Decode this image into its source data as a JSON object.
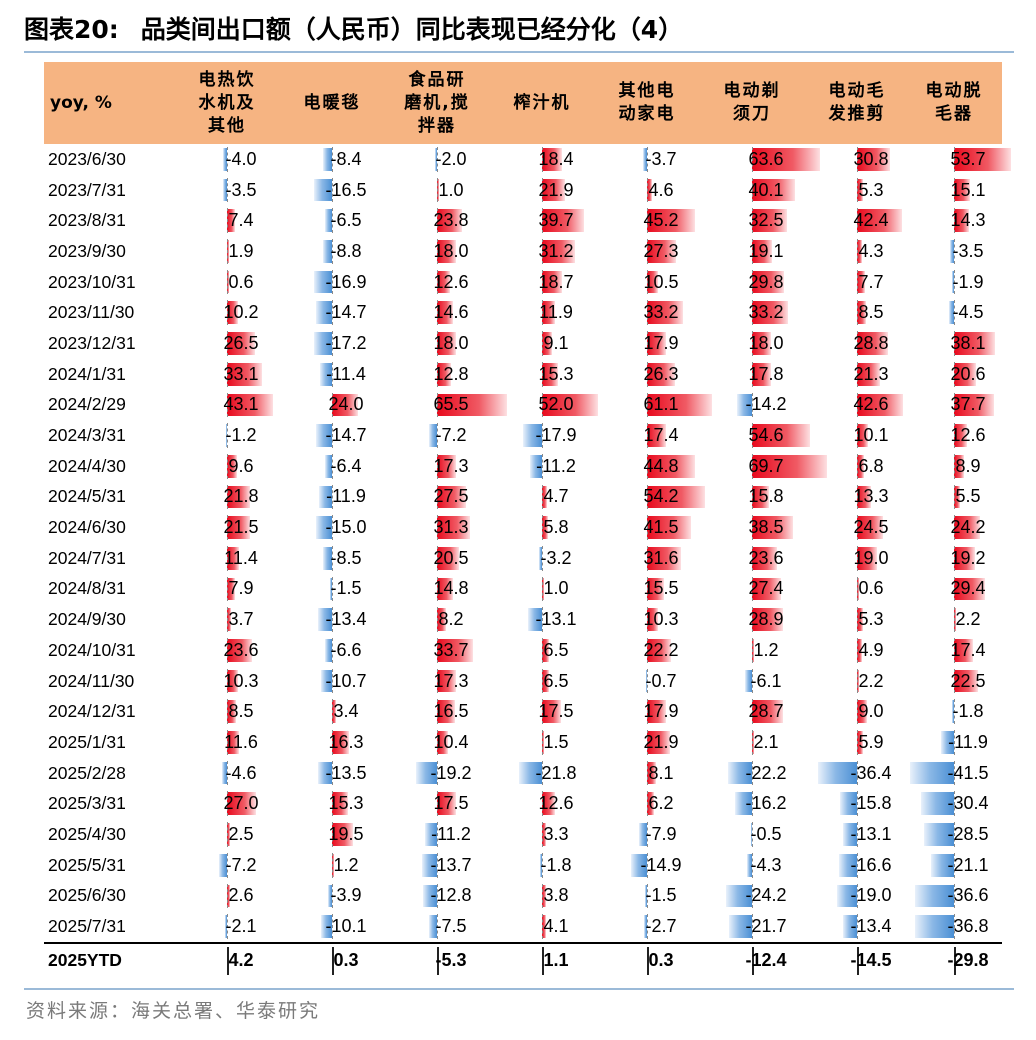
{
  "title": {
    "label": "图表20:",
    "text": "品类间出口额（人民币）同比表现已经分化（4）"
  },
  "table": {
    "header_first": "yoy, %",
    "columns": [
      "电热饮\n水机及\n其他",
      "电暖毯",
      "食品研\n磨机,搅\n拌器",
      "榨汁机",
      "其他电\n动家电",
      "电动剃\n须刀",
      "电动毛\n发推剪",
      "电动脱\n毛器"
    ],
    "colors": {
      "header_bg": "#f6b482",
      "positive": "#e8091d",
      "negative": "#4a8fd4"
    },
    "rows": [
      {
        "date": "2023/6/30",
        "values": [
          "-4.0",
          "-8.4",
          "-2.0",
          "18.4",
          "-3.7",
          "63.6",
          "30.8",
          "53.7"
        ]
      },
      {
        "date": "2023/7/31",
        "values": [
          "-3.5",
          "-16.5",
          "1.0",
          "21.9",
          "4.6",
          "40.1",
          "5.3",
          "15.1"
        ]
      },
      {
        "date": "2023/8/31",
        "values": [
          "7.4",
          "-6.5",
          "23.8",
          "39.7",
          "45.2",
          "32.5",
          "42.4",
          "14.3"
        ]
      },
      {
        "date": "2023/9/30",
        "values": [
          "1.9",
          "-8.8",
          "18.0",
          "31.2",
          "27.3",
          "19.1",
          "4.3",
          "-3.5"
        ]
      },
      {
        "date": "2023/10/31",
        "values": [
          "0.6",
          "-16.9",
          "12.6",
          "18.7",
          "10.5",
          "29.8",
          "7.7",
          "-1.9"
        ]
      },
      {
        "date": "2023/11/30",
        "values": [
          "10.2",
          "-14.7",
          "14.6",
          "11.9",
          "33.2",
          "33.2",
          "8.5",
          "-4.5"
        ]
      },
      {
        "date": "2023/12/31",
        "values": [
          "26.5",
          "-17.2",
          "18.0",
          "9.1",
          "17.9",
          "18.0",
          "28.8",
          "38.1"
        ]
      },
      {
        "date": "2024/1/31",
        "values": [
          "33.1",
          "-11.4",
          "12.8",
          "15.3",
          "26.3",
          "17.8",
          "21.3",
          "20.6"
        ]
      },
      {
        "date": "2024/2/29",
        "values": [
          "43.1",
          "24.0",
          "65.5",
          "52.0",
          "61.1",
          "-14.2",
          "42.6",
          "37.7"
        ]
      },
      {
        "date": "2024/3/31",
        "values": [
          "-1.2",
          "-14.7",
          "-7.2",
          "-17.9",
          "17.4",
          "54.6",
          "10.1",
          "12.6"
        ]
      },
      {
        "date": "2024/4/30",
        "values": [
          "9.6",
          "-6.4",
          "17.3",
          "-11.2",
          "44.8",
          "69.7",
          "6.8",
          "8.9"
        ]
      },
      {
        "date": "2024/5/31",
        "values": [
          "21.8",
          "-11.9",
          "27.5",
          "4.7",
          "54.2",
          "15.8",
          "13.3",
          "5.5"
        ]
      },
      {
        "date": "2024/6/30",
        "values": [
          "21.5",
          "-15.0",
          "31.3",
          "5.8",
          "41.5",
          "38.5",
          "24.5",
          "24.2"
        ]
      },
      {
        "date": "2024/7/31",
        "values": [
          "11.4",
          "-8.5",
          "20.5",
          "-3.2",
          "31.6",
          "23.6",
          "19.0",
          "19.2"
        ]
      },
      {
        "date": "2024/8/31",
        "values": [
          "7.9",
          "-1.5",
          "14.8",
          "1.0",
          "15.5",
          "27.4",
          "0.6",
          "29.4"
        ]
      },
      {
        "date": "2024/9/30",
        "values": [
          "3.7",
          "-13.4",
          "8.2",
          "-13.1",
          "10.3",
          "28.9",
          "5.3",
          "2.2"
        ]
      },
      {
        "date": "2024/10/31",
        "values": [
          "23.6",
          "-6.6",
          "33.7",
          "6.5",
          "22.2",
          "1.2",
          "4.9",
          "17.4"
        ]
      },
      {
        "date": "2024/11/30",
        "values": [
          "10.3",
          "-10.7",
          "17.3",
          "6.5",
          "-0.7",
          "-6.1",
          "2.2",
          "22.5"
        ]
      },
      {
        "date": "2024/12/31",
        "values": [
          "8.5",
          "3.4",
          "16.5",
          "17.5",
          "17.9",
          "28.7",
          "9.0",
          "-1.8"
        ]
      },
      {
        "date": "2025/1/31",
        "values": [
          "11.6",
          "16.3",
          "10.4",
          "1.5",
          "21.9",
          "2.1",
          "5.9",
          "-11.9"
        ]
      },
      {
        "date": "2025/2/28",
        "values": [
          "-4.6",
          "-13.5",
          "-19.2",
          "-21.8",
          "8.1",
          "-22.2",
          "-36.4",
          "-41.5"
        ]
      },
      {
        "date": "2025/3/31",
        "values": [
          "27.0",
          "15.3",
          "17.5",
          "12.6",
          "6.2",
          "-16.2",
          "-15.8",
          "-30.4"
        ]
      },
      {
        "date": "2025/4/30",
        "values": [
          "2.5",
          "19.5",
          "-11.2",
          "3.3",
          "-7.9",
          "-0.5",
          "-13.1",
          "-28.5"
        ]
      },
      {
        "date": "2025/5/31",
        "values": [
          "-7.2",
          "1.2",
          "-13.7",
          "-1.8",
          "-14.9",
          "-4.3",
          "-16.6",
          "-21.1"
        ]
      },
      {
        "date": "2025/6/30",
        "values": [
          "2.6",
          "-3.9",
          "-12.8",
          "3.8",
          "-1.5",
          "-24.2",
          "-19.0",
          "-36.6"
        ]
      },
      {
        "date": "2025/7/31",
        "values": [
          "-2.1",
          "-10.1",
          "-7.5",
          "4.1",
          "-2.7",
          "-21.7",
          "-13.4",
          "-36.8"
        ]
      }
    ],
    "ytd": {
      "date": "2025YTD",
      "values": [
        "4.2",
        "0.3",
        "-5.3",
        "1.1",
        "0.3",
        "-12.4",
        "-14.5",
        "-29.8"
      ]
    }
  },
  "source": "资料来源：海关总署、华泰研究"
}
